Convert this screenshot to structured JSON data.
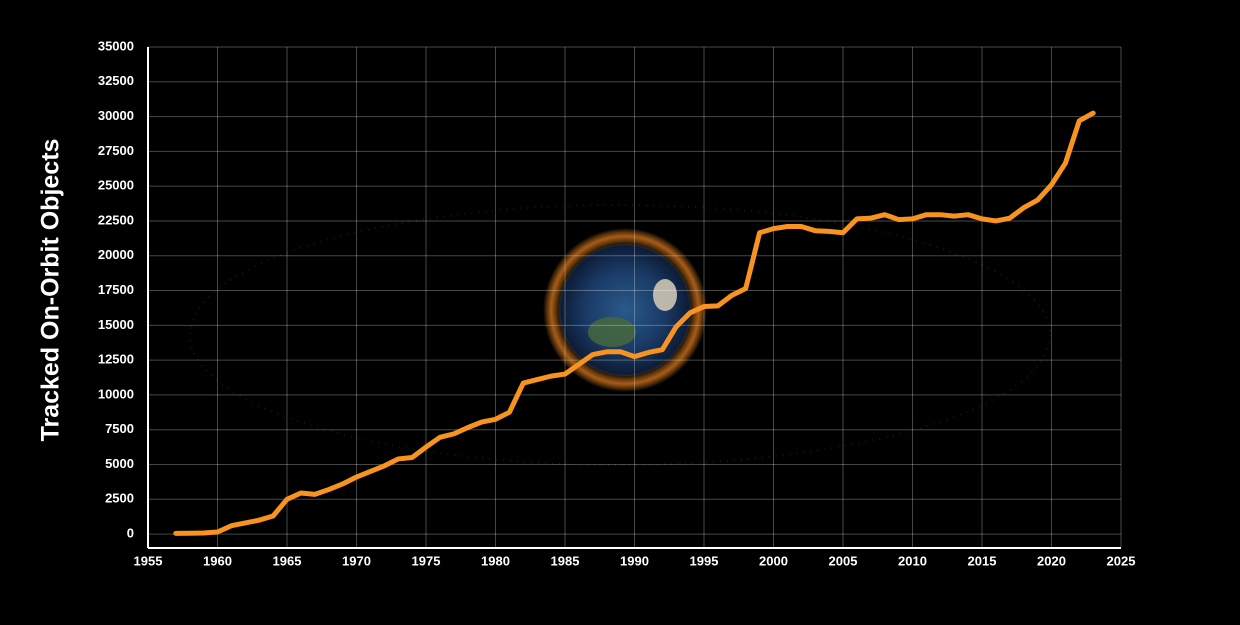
{
  "chart_data": {
    "type": "line",
    "y_label": "Tracked On-Orbit Objects",
    "x": [
      1957,
      1958,
      1959,
      1960,
      1961,
      1962,
      1963,
      1964,
      1965,
      1966,
      1967,
      1968,
      1969,
      1970,
      1971,
      1972,
      1973,
      1974,
      1975,
      1976,
      1977,
      1978,
      1979,
      1980,
      1981,
      1982,
      1983,
      1984,
      1985,
      1986,
      1987,
      1988,
      1989,
      1990,
      1991,
      1992,
      1993,
      1994,
      1995,
      1996,
      1997,
      1998,
      1999,
      2000,
      2001,
      2002,
      2003,
      2004,
      2005,
      2006,
      2007,
      2008,
      2009,
      2010,
      2011,
      2012,
      2013,
      2014,
      2015,
      2016,
      2017,
      2018,
      2019,
      2020,
      2021,
      2022,
      2023
    ],
    "values": [
      50,
      60,
      80,
      150,
      600,
      800,
      1000,
      1300,
      2500,
      2950,
      2850,
      3200,
      3600,
      4100,
      4500,
      4900,
      5400,
      5500,
      6250,
      6950,
      7200,
      7650,
      8050,
      8250,
      8750,
      10850,
      11100,
      11350,
      11500,
      12200,
      12900,
      13100,
      13100,
      12750,
      13050,
      13250,
      14900,
      15900,
      16350,
      16400,
      17150,
      17650,
      21650,
      21950,
      22100,
      22100,
      21800,
      21750,
      21650,
      22650,
      22700,
      22950,
      22600,
      22650,
      22950,
      22950,
      22850,
      22950,
      22650,
      22500,
      22700,
      23450,
      24000,
      25100,
      26650,
      29700,
      30250
    ],
    "color": "#f7931e",
    "xlim": [
      1955,
      2025
    ],
    "xticks": [
      1955,
      1960,
      1965,
      1970,
      1975,
      1980,
      1985,
      1990,
      1995,
      2000,
      2005,
      2010,
      2015,
      2020,
      2025
    ],
    "ylim": [
      -1000,
      35000
    ],
    "yticks": [
      0,
      2500,
      5000,
      7500,
      10000,
      12500,
      15000,
      17500,
      20000,
      22500,
      25000,
      27500,
      30000,
      32500,
      35000
    ],
    "grid": true
  }
}
